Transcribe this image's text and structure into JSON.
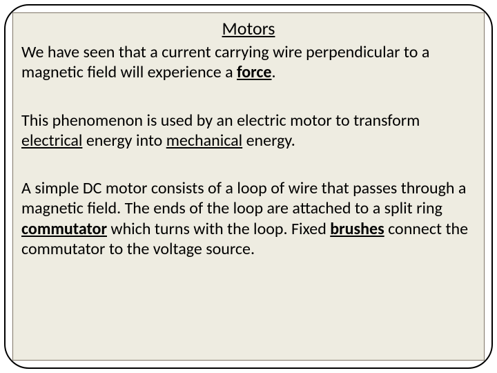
{
  "slide": {
    "title": "Motors",
    "background_color": "#eeece1",
    "border_color": "#7f7567",
    "outer_border_color": "#000000",
    "outer_border_radius": 36,
    "title_fontsize": 26,
    "body_fontsize": 24,
    "text_color": "#000000",
    "font_family": "Calibri",
    "paragraphs": [
      {
        "pre": "We have seen that a current carrying wire perpendicular to a magnetic field will experience a ",
        "emph": "force",
        "post": "."
      },
      {
        "pre": "This phenomenon is used by an electric motor to transform ",
        "emph_plain_1": "electrical",
        "mid": " energy into ",
        "emph_plain_2": "mechanical",
        "post": " energy."
      },
      {
        "pre": "A simple DC motor consists of a loop of wire that passes through a magnetic field.  The ends of the loop are attached to a split ring ",
        "emph_1": "commutator",
        "mid": " which turns with the loop. Fixed ",
        "emph_2": "brushes",
        "post": " connect the commutator to the voltage source."
      }
    ]
  }
}
